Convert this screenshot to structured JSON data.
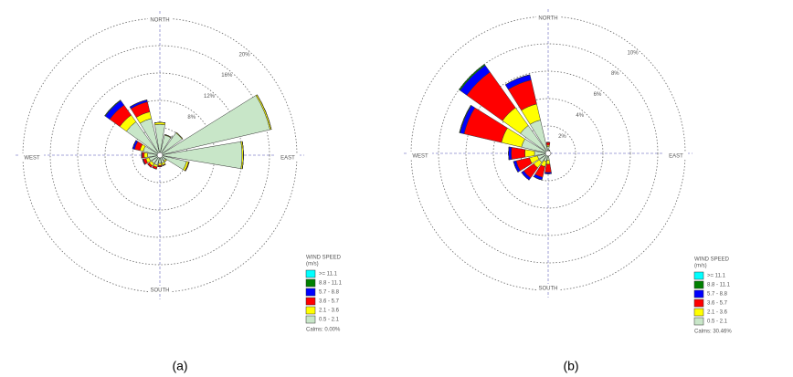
{
  "chart_data": [
    {
      "type": "wind-rose",
      "caption": "(a)",
      "compass": [
        "NORTH",
        "EAST",
        "SOUTH",
        "WEST"
      ],
      "categories": [
        null,
        null,
        null,
        null,
        null,
        null,
        null,
        null,
        null,
        null,
        null,
        null,
        null,
        null,
        null,
        null
      ],
      "rlim": [
        0,
        20
      ],
      "rticks": [
        {
          "value": 4,
          "label": "4%"
        },
        {
          "value": 8,
          "label": "8%"
        },
        {
          "value": 12,
          "label": "12%"
        },
        {
          "value": 16,
          "label": "16%"
        },
        {
          "value": 20,
          "label": "20%"
        }
      ],
      "legend_title": "WIND SPEED",
      "legend_unit": "(m/s)",
      "note": "Calms: 0.00%",
      "series": [
        {
          "name": ">= 11.1",
          "color": "#00ffff",
          "values": [
            0,
            0,
            0,
            0,
            0,
            0,
            0,
            0,
            0,
            0,
            0,
            0,
            0,
            0,
            0,
            0
          ]
        },
        {
          "name": "8.8 - 11.1",
          "color": "#008000",
          "values": [
            0,
            0,
            0,
            0,
            0,
            0,
            0,
            0,
            0,
            0,
            0,
            0,
            0,
            0,
            0.1,
            0
          ]
        },
        {
          "name": "5.7 - 8.8",
          "color": "#0000ff",
          "values": [
            0,
            0,
            0,
            0,
            0,
            0,
            0,
            0,
            0,
            0,
            0,
            0.1,
            0.1,
            0.3,
            0.8,
            0.3
          ]
        },
        {
          "name": "3.6 - 5.7",
          "color": "#ff0000",
          "values": [
            0,
            0,
            0,
            0,
            0,
            0.1,
            0,
            0.1,
            0.2,
            0.3,
            0.3,
            0.4,
            0.3,
            0.8,
            1.8,
            1.5
          ]
        },
        {
          "name": "2.1 - 3.6",
          "color": "#ffff00",
          "values": [
            0.3,
            0.1,
            0.1,
            0.2,
            0.2,
            0.3,
            0.2,
            0.3,
            0.3,
            0.3,
            0.4,
            0.5,
            0.5,
            0.5,
            1.2,
            1
          ]
        },
        {
          "name": "0.5 - 2.1",
          "color": "#c8e6c8",
          "values": [
            4.5,
            3,
            4,
            16.5,
            12,
            4,
            1,
            1.2,
            1.2,
            1.5,
            1.5,
            1.6,
            1.8,
            2.5,
            6,
            5.5
          ]
        }
      ]
    },
    {
      "type": "wind-rose",
      "caption": "(b)",
      "compass": [
        "NORTH",
        "EAST",
        "SOUTH",
        "WEST"
      ],
      "categories": [
        null,
        null,
        null,
        null,
        null,
        null,
        null,
        null,
        null,
        null,
        null,
        null,
        null,
        null,
        null,
        null
      ],
      "rlim": [
        0,
        10
      ],
      "rticks": [
        {
          "value": 2,
          "label": "2%"
        },
        {
          "value": 4,
          "label": "4%"
        },
        {
          "value": 6,
          "label": "6%"
        },
        {
          "value": 8,
          "label": "8%"
        },
        {
          "value": 10,
          "label": "10%"
        }
      ],
      "legend_title": "WIND SPEED",
      "legend_unit": "(m/s)",
      "note": "Calms: 30.46%",
      "series": [
        {
          "name": ">= 11.1",
          "color": "#00ffff",
          "values": [
            0,
            0,
            0,
            0,
            0,
            0,
            0,
            0,
            0,
            0,
            0,
            0,
            0,
            0,
            0,
            0
          ]
        },
        {
          "name": "8.8 - 11.1",
          "color": "#008000",
          "values": [
            0,
            0,
            0,
            0,
            0,
            0,
            0,
            0,
            0,
            0,
            0,
            0,
            0,
            0.05,
            0.1,
            0
          ]
        },
        {
          "name": "5.7 - 8.8",
          "color": "#0000ff",
          "values": [
            0,
            0,
            0,
            0,
            0,
            0,
            0,
            0,
            0.1,
            0.2,
            0.2,
            0.2,
            0.2,
            0.3,
            0.6,
            0.4
          ]
        },
        {
          "name": "3.6 - 5.7",
          "color": "#ff0000",
          "values": [
            0.2,
            0,
            0,
            0,
            0,
            0,
            0,
            0,
            0.6,
            0.8,
            0.9,
            1,
            1,
            2.8,
            3.2,
            1.8
          ]
        },
        {
          "name": "2.1 - 3.6",
          "color": "#ffff00",
          "values": [
            0.1,
            0.05,
            0,
            0,
            0,
            0,
            0,
            0,
            0.3,
            0.4,
            0.5,
            0.6,
            0.7,
            1.5,
            1.6,
            1.2
          ]
        },
        {
          "name": "0.5 - 2.1",
          "color": "#c8e6c8",
          "values": [
            0.5,
            0.2,
            0.1,
            0.1,
            0.2,
            0.1,
            0.1,
            0.2,
            0.5,
            0.6,
            0.8,
            0.8,
            1,
            2,
            2.5,
            2.5
          ]
        }
      ]
    }
  ]
}
